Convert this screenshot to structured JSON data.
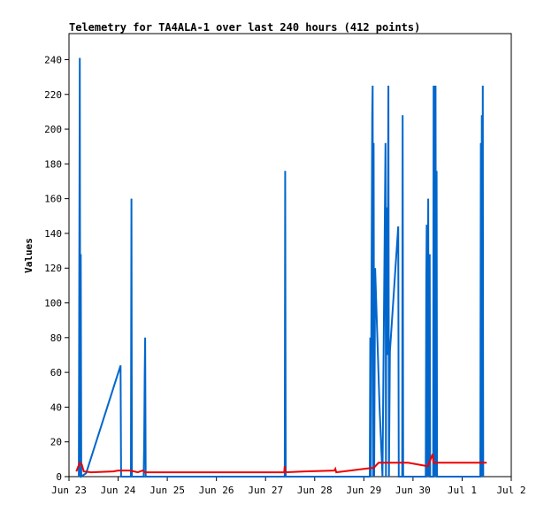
{
  "chart_data": {
    "type": "line",
    "title": "Telemetry for TA4ALA-1 over last 240 hours (412 points)",
    "ylabel": "Values",
    "xlabel": "",
    "x_axis": {
      "ticks": [
        "Jun 23",
        "Jun 24",
        "Jun 25",
        "Jun 26",
        "Jun 27",
        "Jun 28",
        "Jun 29",
        "Jun 30",
        "Jul 1",
        "Jul 2"
      ],
      "range_days_from_jun23": [
        0,
        9
      ]
    },
    "y_axis": {
      "ticks": [
        0,
        20,
        40,
        60,
        80,
        100,
        120,
        140,
        160,
        180,
        200,
        220,
        240
      ],
      "ylim": [
        0,
        255
      ]
    },
    "grid": false,
    "legend": "none",
    "colors": {
      "series_blue": "#0066cc",
      "series_red": "#ee0000",
      "axis": "#000000",
      "background": "#ffffff"
    },
    "series": [
      {
        "color": "#0066cc",
        "points": [
          [
            0.2,
            0
          ],
          [
            0.22,
            241
          ],
          [
            0.23,
            0
          ],
          [
            0.24,
            128
          ],
          [
            0.25,
            0
          ],
          [
            0.35,
            2
          ],
          [
            1.05,
            64
          ],
          [
            1.06,
            0
          ],
          [
            1.26,
            0
          ],
          [
            1.27,
            160
          ],
          [
            1.28,
            0
          ],
          [
            1.52,
            0
          ],
          [
            1.53,
            20
          ],
          [
            1.54,
            60
          ],
          [
            1.55,
            80
          ],
          [
            1.56,
            0
          ],
          [
            4.39,
            0
          ],
          [
            4.4,
            176
          ],
          [
            4.41,
            0
          ],
          [
            6.12,
            0
          ],
          [
            6.13,
            80
          ],
          [
            6.14,
            0
          ],
          [
            6.17,
            208
          ],
          [
            6.18,
            225
          ],
          [
            6.19,
            0
          ],
          [
            6.2,
            192
          ],
          [
            6.21,
            0
          ],
          [
            6.23,
            120
          ],
          [
            6.32,
            40
          ],
          [
            6.38,
            0
          ],
          [
            6.44,
            192
          ],
          [
            6.45,
            0
          ],
          [
            6.46,
            155
          ],
          [
            6.47,
            80
          ],
          [
            6.48,
            70
          ],
          [
            6.5,
            225
          ],
          [
            6.51,
            0
          ],
          [
            6.53,
            72
          ],
          [
            6.7,
            144
          ],
          [
            6.71,
            0
          ],
          [
            6.78,
            0
          ],
          [
            6.79,
            208
          ],
          [
            6.8,
            0
          ],
          [
            7.26,
            0
          ],
          [
            7.27,
            112
          ],
          [
            7.28,
            145
          ],
          [
            7.29,
            0
          ],
          [
            7.31,
            160
          ],
          [
            7.32,
            0
          ],
          [
            7.34,
            128
          ],
          [
            7.35,
            0
          ],
          [
            7.41,
            0
          ],
          [
            7.42,
            225
          ],
          [
            7.43,
            0
          ],
          [
            7.44,
            225
          ],
          [
            7.45,
            0
          ],
          [
            7.46,
            225
          ],
          [
            7.47,
            0
          ],
          [
            7.48,
            176
          ],
          [
            7.49,
            0
          ],
          [
            8.37,
            0
          ],
          [
            8.38,
            192
          ],
          [
            8.39,
            0
          ],
          [
            8.4,
            208
          ],
          [
            8.41,
            0
          ],
          [
            8.42,
            225
          ],
          [
            8.43,
            0
          ]
        ]
      },
      {
        "color": "#ee0000",
        "points": [
          [
            0.15,
            3
          ],
          [
            0.22,
            8
          ],
          [
            0.26,
            7
          ],
          [
            0.3,
            3
          ],
          [
            0.45,
            2.5
          ],
          [
            0.9,
            3
          ],
          [
            1.0,
            3.5
          ],
          [
            1.25,
            3.5
          ],
          [
            1.4,
            2.5
          ],
          [
            1.5,
            3.5
          ],
          [
            1.55,
            2.5
          ],
          [
            4.38,
            2.5
          ],
          [
            4.39,
            6
          ],
          [
            4.4,
            2.5
          ],
          [
            4.8,
            3
          ],
          [
            5.4,
            3.5
          ],
          [
            5.42,
            4.5
          ],
          [
            5.44,
            2.5
          ],
          [
            6.0,
            4.5
          ],
          [
            6.15,
            5
          ],
          [
            6.2,
            5
          ],
          [
            6.3,
            8
          ],
          [
            6.9,
            8
          ],
          [
            7.3,
            6
          ],
          [
            7.4,
            13
          ],
          [
            7.42,
            8
          ],
          [
            7.6,
            8
          ],
          [
            8.5,
            8
          ]
        ]
      }
    ]
  }
}
